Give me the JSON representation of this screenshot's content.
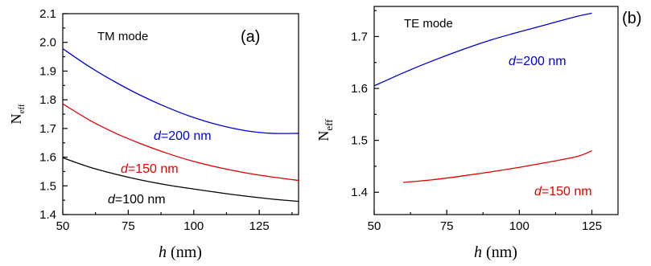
{
  "chart_data": [
    {
      "type": "line",
      "panel_label": "(a)",
      "mode_label": "TM mode",
      "xlabel_italic": "h",
      "xlabel_unit": " (nm)",
      "ylabel_main": "N",
      "ylabel_sub": "eff",
      "xlim": [
        50,
        140
      ],
      "ylim": [
        1.4,
        2.1
      ],
      "xticks": [
        50,
        75,
        100,
        125
      ],
      "yticks": [
        1.4,
        1.5,
        1.6,
        1.7,
        1.8,
        1.9,
        2.0,
        2.1
      ],
      "ytick_labels": [
        "1.4",
        "1.5",
        "1.6",
        "1.7",
        "1.8",
        "1.9",
        "2.0",
        "2.1"
      ],
      "grid": false,
      "series": [
        {
          "name": "d=200 nm",
          "name_italic": "d",
          "name_rest": "=200 nm",
          "color": "#0000dd",
          "x": [
            50,
            60,
            70,
            80,
            90,
            100,
            110,
            120,
            130,
            140
          ],
          "y": [
            1.978,
            1.916,
            1.862,
            1.814,
            1.773,
            1.738,
            1.711,
            1.692,
            1.683,
            1.683
          ]
        },
        {
          "name": "d=150 nm",
          "name_italic": "d",
          "name_rest": "=150 nm",
          "color": "#e00000",
          "x": [
            50,
            60,
            70,
            80,
            90,
            100,
            110,
            120,
            130,
            140
          ],
          "y": [
            1.786,
            1.73,
            1.684,
            1.646,
            1.613,
            1.585,
            1.563,
            1.545,
            1.531,
            1.519
          ]
        },
        {
          "name": "d=100 nm",
          "name_italic": "d",
          "name_rest": "=100 nm",
          "color": "#000000",
          "x": [
            50,
            60,
            70,
            80,
            90,
            100,
            110,
            120,
            130,
            140
          ],
          "y": [
            1.598,
            1.566,
            1.541,
            1.52,
            1.503,
            1.489,
            1.476,
            1.464,
            1.454,
            1.446
          ]
        }
      ]
    },
    {
      "type": "line",
      "panel_label": "(b)",
      "mode_label": "TE mode",
      "xlabel_italic": "h",
      "xlabel_unit": " (nm)",
      "ylabel_main": "N",
      "ylabel_sub": "eff",
      "xlim": [
        50,
        134
      ],
      "ylim": [
        1.357,
        1.758
      ],
      "xticks": [
        50,
        75,
        100,
        125
      ],
      "yticks": [
        1.4,
        1.5,
        1.6,
        1.7
      ],
      "ytick_labels": [
        "1.4",
        "1.5",
        "1.6",
        "1.7"
      ],
      "grid": false,
      "series": [
        {
          "name": "d=200 nm",
          "name_italic": "d",
          "name_rest": "=200 nm",
          "color": "#0000dd",
          "x": [
            50,
            60,
            70,
            80,
            90,
            100,
            110,
            120,
            125
          ],
          "y": [
            1.605,
            1.63,
            1.653,
            1.674,
            1.693,
            1.709,
            1.724,
            1.739,
            1.745
          ]
        },
        {
          "name": "d=150 nm",
          "name_italic": "d",
          "name_rest": "=150 nm",
          "color": "#e00000",
          "x": [
            60,
            70,
            80,
            90,
            100,
            110,
            120,
            125
          ],
          "y": [
            1.419,
            1.424,
            1.431,
            1.439,
            1.448,
            1.458,
            1.469,
            1.48
          ]
        }
      ]
    }
  ]
}
